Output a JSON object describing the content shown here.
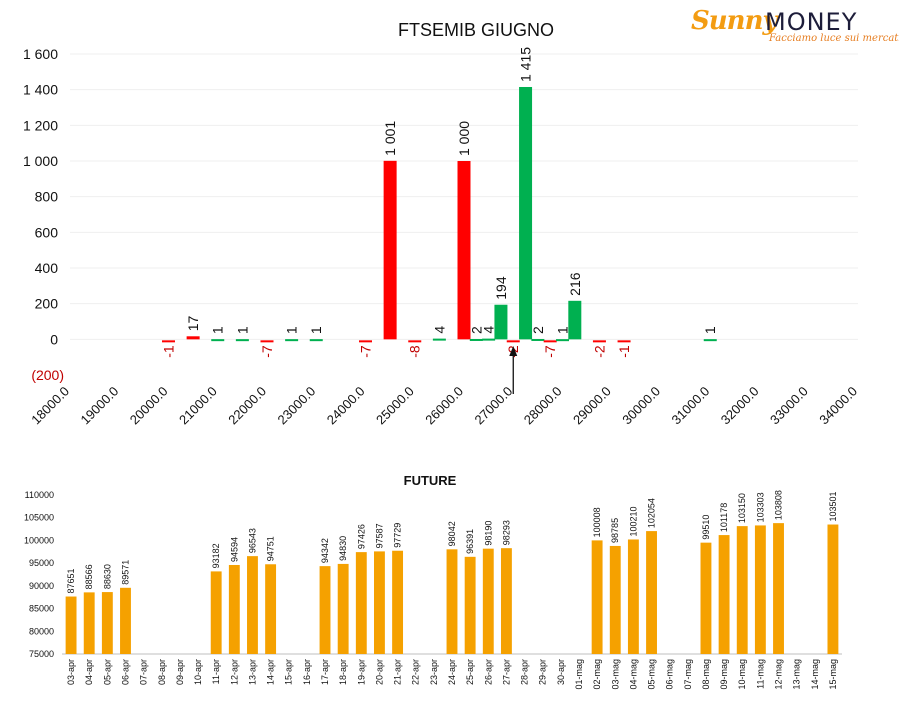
{
  "brand": {
    "name_part1": "Sunny",
    "name_part2": "MONEY",
    "tagline": "Facciamo luce sui mercati",
    "color_sun": "#f39c12",
    "color_text": "#1d1d3a"
  },
  "colors": {
    "positive": "#00b050",
    "negative": "#ff0000",
    "future": "#f5a100",
    "negative_label": "#c00000"
  },
  "chart_data": [
    {
      "type": "bar",
      "title": "FTSEMIB GIUGNO",
      "xlabel": "",
      "ylabel": "",
      "ylim": [
        -200,
        1600
      ],
      "xlim": [
        18000,
        34000
      ],
      "y_tick_labels": [
        "(200)",
        "0",
        "200",
        "400",
        "600",
        "800",
        "1 000",
        "1 200",
        "1 400",
        "1 600"
      ],
      "y_tick_values": [
        -200,
        0,
        200,
        400,
        600,
        800,
        1000,
        1200,
        1400,
        1600
      ],
      "x_tick_labels": [
        "18000.0",
        "19000.0",
        "20000.0",
        "21000.0",
        "22000.0",
        "23000.0",
        "24000.0",
        "25000.0",
        "26000.0",
        "27000.0",
        "28000.0",
        "29000.0",
        "30000.0",
        "31000.0",
        "32000.0",
        "33000.0",
        "34000.0"
      ],
      "x_tick_values": [
        18000,
        19000,
        20000,
        21000,
        22000,
        23000,
        24000,
        25000,
        26000,
        27000,
        28000,
        29000,
        30000,
        31000,
        32000,
        33000,
        34000
      ],
      "grid": true,
      "points": [
        {
          "x": 20000,
          "value": -1,
          "label": "-1"
        },
        {
          "x": 20500,
          "value": 17,
          "label": "17"
        },
        {
          "x": 21000,
          "value": 1,
          "label": "1"
        },
        {
          "x": 21500,
          "value": 1,
          "label": "1"
        },
        {
          "x": 22000,
          "value": -7,
          "label": "-7"
        },
        {
          "x": 22500,
          "value": 1,
          "label": "1"
        },
        {
          "x": 23000,
          "value": 1,
          "label": "1"
        },
        {
          "x": 24000,
          "value": -7,
          "label": "-7"
        },
        {
          "x": 24500,
          "value": 1001,
          "label": "1 001"
        },
        {
          "x": 25000,
          "value": -8,
          "label": "-8"
        },
        {
          "x": 25500,
          "value": 4,
          "label": "4"
        },
        {
          "x": 26000,
          "value": 1000,
          "label": "1 000"
        },
        {
          "x": 26250,
          "value": 2,
          "label": "2"
        },
        {
          "x": 26500,
          "value": 4,
          "label": "4"
        },
        {
          "x": 26750,
          "value": 194,
          "label": "194"
        },
        {
          "x": 27000,
          "value": -2,
          "label": "-2"
        },
        {
          "x": 27250,
          "value": 1415,
          "label": "1 415"
        },
        {
          "x": 27500,
          "value": 2,
          "label": "2"
        },
        {
          "x": 27750,
          "value": -7,
          "label": "-7"
        },
        {
          "x": 28000,
          "value": 1,
          "label": "1"
        },
        {
          "x": 28250,
          "value": 216,
          "label": "216"
        },
        {
          "x": 28750,
          "value": -2,
          "label": "-2"
        },
        {
          "x": 29250,
          "value": -1,
          "label": "-1"
        },
        {
          "x": 31000,
          "value": 1,
          "label": "1"
        }
      ],
      "marker": {
        "x": 27000,
        "note": "arrow pointing at current level"
      }
    },
    {
      "type": "bar",
      "title": "FUTURE",
      "xlabel": "",
      "ylabel": "",
      "ylim": [
        75000,
        110000
      ],
      "y_tick_labels": [
        "75000",
        "80000",
        "85000",
        "90000",
        "95000",
        "100000",
        "105000",
        "110000"
      ],
      "y_tick_values": [
        75000,
        80000,
        85000,
        90000,
        95000,
        100000,
        105000,
        110000
      ],
      "categories": [
        "03-apr",
        "04-apr",
        "05-apr",
        "06-apr",
        "07-apr",
        "08-apr",
        "09-apr",
        "10-apr",
        "11-apr",
        "12-apr",
        "13-apr",
        "14-apr",
        "15-apr",
        "16-apr",
        "17-apr",
        "18-apr",
        "19-apr",
        "20-apr",
        "21-apr",
        "22-apr",
        "23-apr",
        "24-apr",
        "25-apr",
        "26-apr",
        "27-apr",
        "28-apr",
        "29-apr",
        "30-apr",
        "01-mag",
        "02-mag",
        "03-mag",
        "04-mag",
        "05-mag",
        "06-mag",
        "07-mag",
        "08-mag",
        "09-mag",
        "10-mag",
        "11-mag",
        "12-mag",
        "13-mag",
        "14-mag",
        "15-mag"
      ],
      "values": [
        87651,
        88566,
        88630,
        89571,
        null,
        null,
        null,
        null,
        93182,
        94594,
        96543,
        94751,
        null,
        null,
        94342,
        94830,
        97426,
        97587,
        97729,
        null,
        null,
        98042,
        96391,
        98190,
        98293,
        null,
        null,
        null,
        null,
        100008,
        98785,
        100210,
        102054,
        null,
        null,
        99510,
        101178,
        103150,
        103303,
        103808,
        null,
        null,
        103501
      ],
      "grid": false
    }
  ]
}
